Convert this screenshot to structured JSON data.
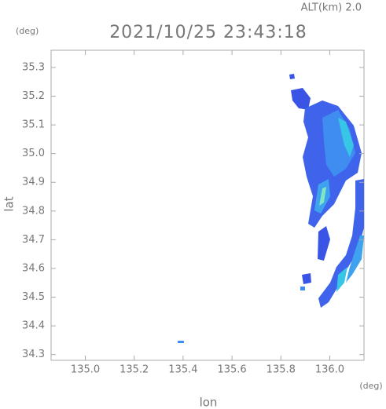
{
  "chart_data": {
    "type": "map",
    "title": "2021/10/25 23:43:18",
    "altitude_label": "ALT(km) 2.0",
    "x_label": "lon",
    "y_label": "lat",
    "x_unit": "(deg)",
    "y_unit": "(deg)",
    "xlim": [
      134.86,
      136.14
    ],
    "ylim": [
      34.28,
      35.36
    ],
    "xticks": [
      {
        "value": 135,
        "label": "135.0"
      },
      135.2,
      135.4,
      135.6,
      135.8,
      {
        "value": 136,
        "label": "136.0"
      }
    ],
    "yticks": [
      34.3,
      34.4,
      34.5,
      34.6,
      34.7,
      34.8,
      34.9,
      {
        "value": 35,
        "label": "35.0"
      },
      35.1,
      35.2,
      35.3
    ]
  }
}
